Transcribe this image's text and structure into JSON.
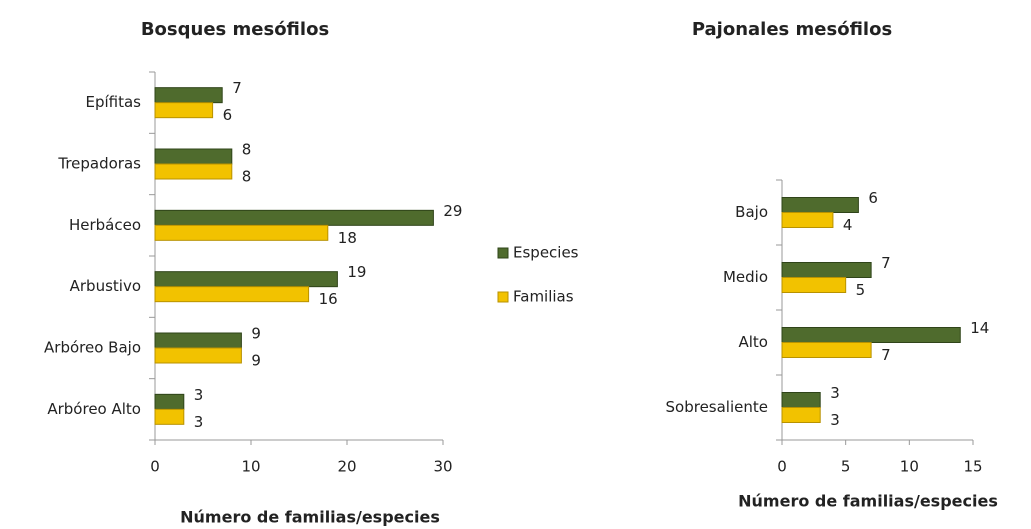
{
  "chart_data": [
    {
      "type": "barh",
      "title": "Bosques mesófilos",
      "xlabel": "Número de familias/especies",
      "categories": [
        "Epífitas",
        "Trepadoras",
        "Herbáceo",
        "Arbustivo",
        "Arbóreo Bajo",
        "Arbóreo Alto"
      ],
      "series": [
        {
          "name": "Especies",
          "color": "#4f6b2d",
          "values": [
            7,
            8,
            29,
            19,
            9,
            3
          ]
        },
        {
          "name": "Familias",
          "color": "#f2c200",
          "values": [
            6,
            8,
            18,
            16,
            9,
            3
          ]
        }
      ],
      "xlim": [
        0,
        30
      ],
      "xticks": [
        0,
        10,
        20,
        30
      ],
      "legend": "right"
    },
    {
      "type": "barh",
      "title": "Pajonales mesófilos",
      "xlabel": "Número de familias/especies",
      "categories": [
        "Bajo",
        "Medio",
        "Alto",
        "Sobresaliente"
      ],
      "series": [
        {
          "color": "#4f6b2d",
          "values": [
            6,
            7,
            14,
            3
          ]
        },
        {
          "color": "#f2c200",
          "values": [
            4,
            5,
            7,
            3
          ]
        }
      ],
      "xlim": [
        0,
        15
      ],
      "xticks": [
        0,
        5,
        10,
        15
      ]
    }
  ]
}
